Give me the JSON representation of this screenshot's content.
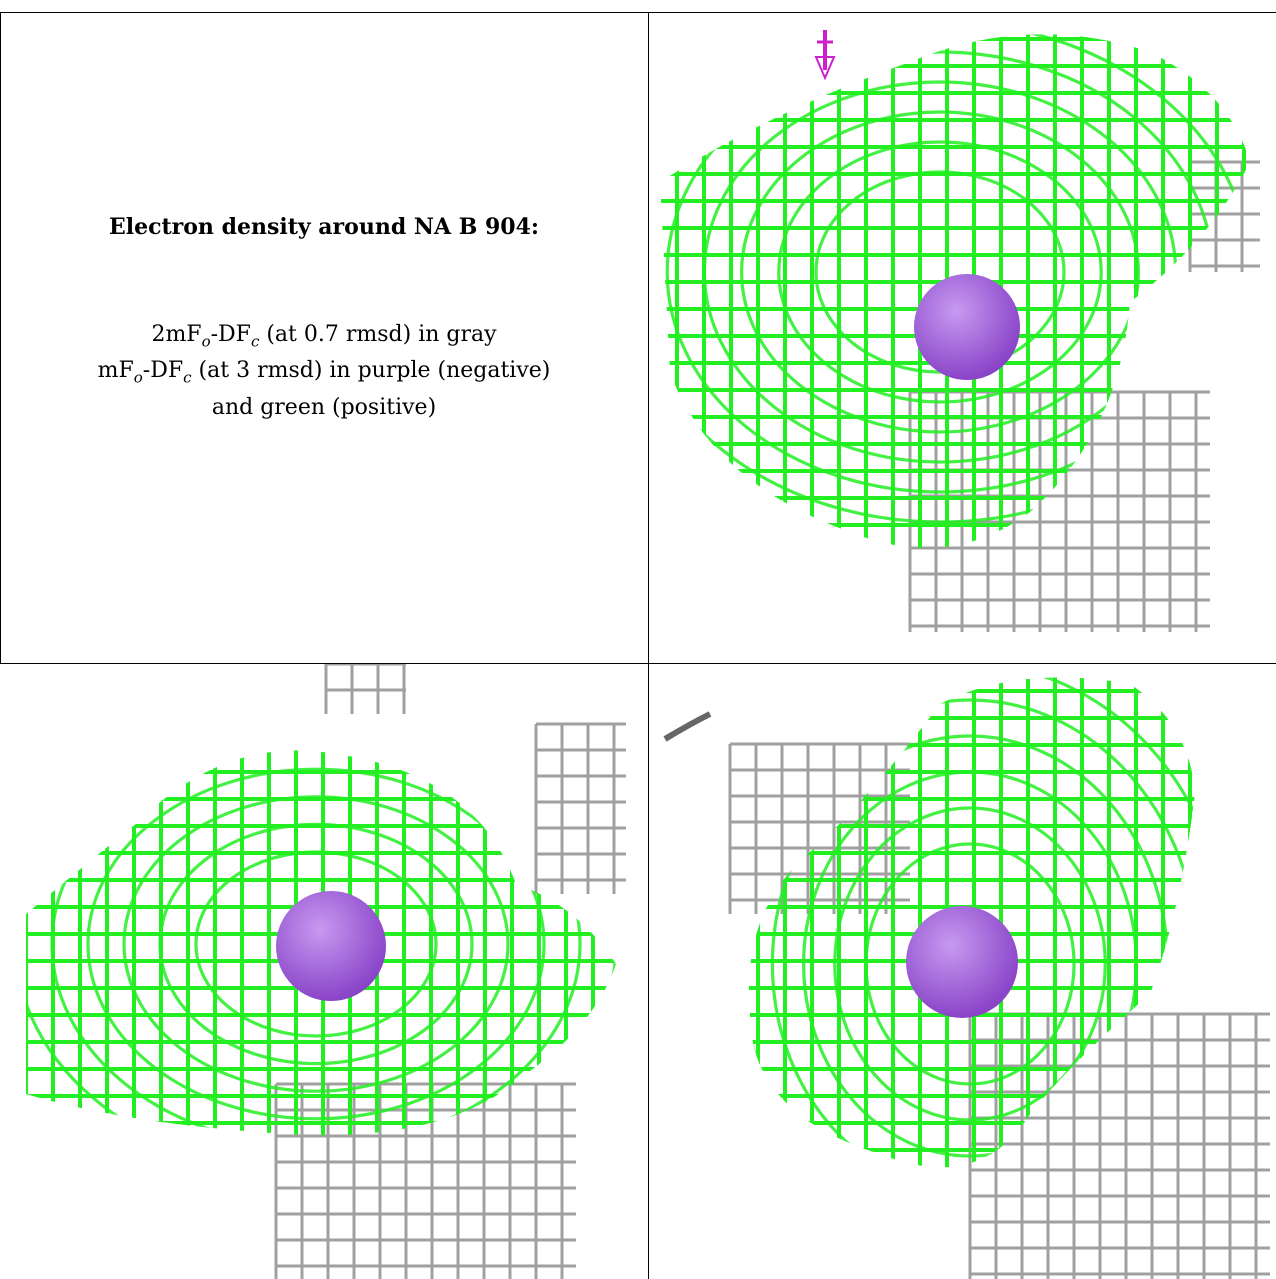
{
  "title": "Electron density around NA B 904:",
  "legend": {
    "line1": {
      "a": "2mF",
      "a_sub": "o",
      "b": "-DF",
      "b_sub": "c",
      "rest": " (at 0.7 rmsd) in gray"
    },
    "line2": {
      "a": "mF",
      "a_sub": "o",
      "b": "-DF",
      "b_sub": "c",
      "rest": " (at 3 rmsd) in purple (negative)"
    },
    "line3": "and green (positive)"
  },
  "colors": {
    "positive_mesh": "#22ee22",
    "map_2fofc": "#a0a0a0",
    "atom_sphere": "#8a44c8",
    "negative_marker": "#cc22cc"
  },
  "panels": [
    {
      "view": "top-right"
    },
    {
      "view": "bottom-left"
    },
    {
      "view": "bottom-right"
    }
  ]
}
